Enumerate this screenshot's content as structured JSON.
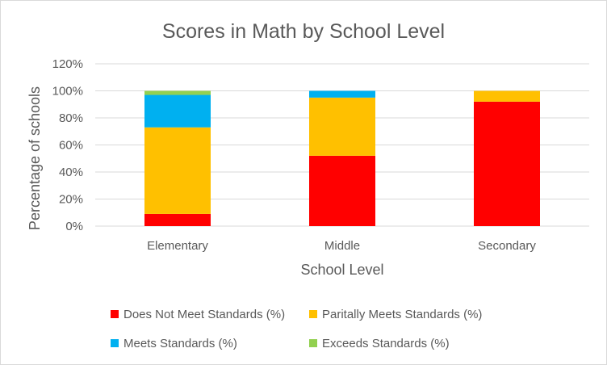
{
  "chart_data": {
    "type": "bar",
    "stacked": true,
    "title": "Scores in Math by School Level",
    "xlabel": "School Level",
    "ylabel": "Percentage of schools",
    "categories": [
      "Elementary",
      "Middle",
      "Secondary"
    ],
    "ylim": [
      0,
      120
    ],
    "yticks": [
      0,
      20,
      40,
      60,
      80,
      100,
      120
    ],
    "ytick_labels": [
      "0%",
      "20%",
      "40%",
      "60%",
      "80%",
      "100%",
      "120%"
    ],
    "grid": true,
    "legend_position": "bottom",
    "series": [
      {
        "name": "Does Not Meet Standards (%)",
        "color": "#ff0000",
        "values": [
          9,
          52,
          92
        ]
      },
      {
        "name": "Paritally Meets Standards (%)",
        "color": "#ffc000",
        "values": [
          64,
          43,
          8
        ]
      },
      {
        "name": "Meets Standards (%)",
        "color": "#00b0f0",
        "values": [
          24,
          5,
          0
        ]
      },
      {
        "name": "Exceeds Standards (%)",
        "color": "#92d050",
        "values": [
          3,
          0,
          0
        ]
      }
    ]
  }
}
